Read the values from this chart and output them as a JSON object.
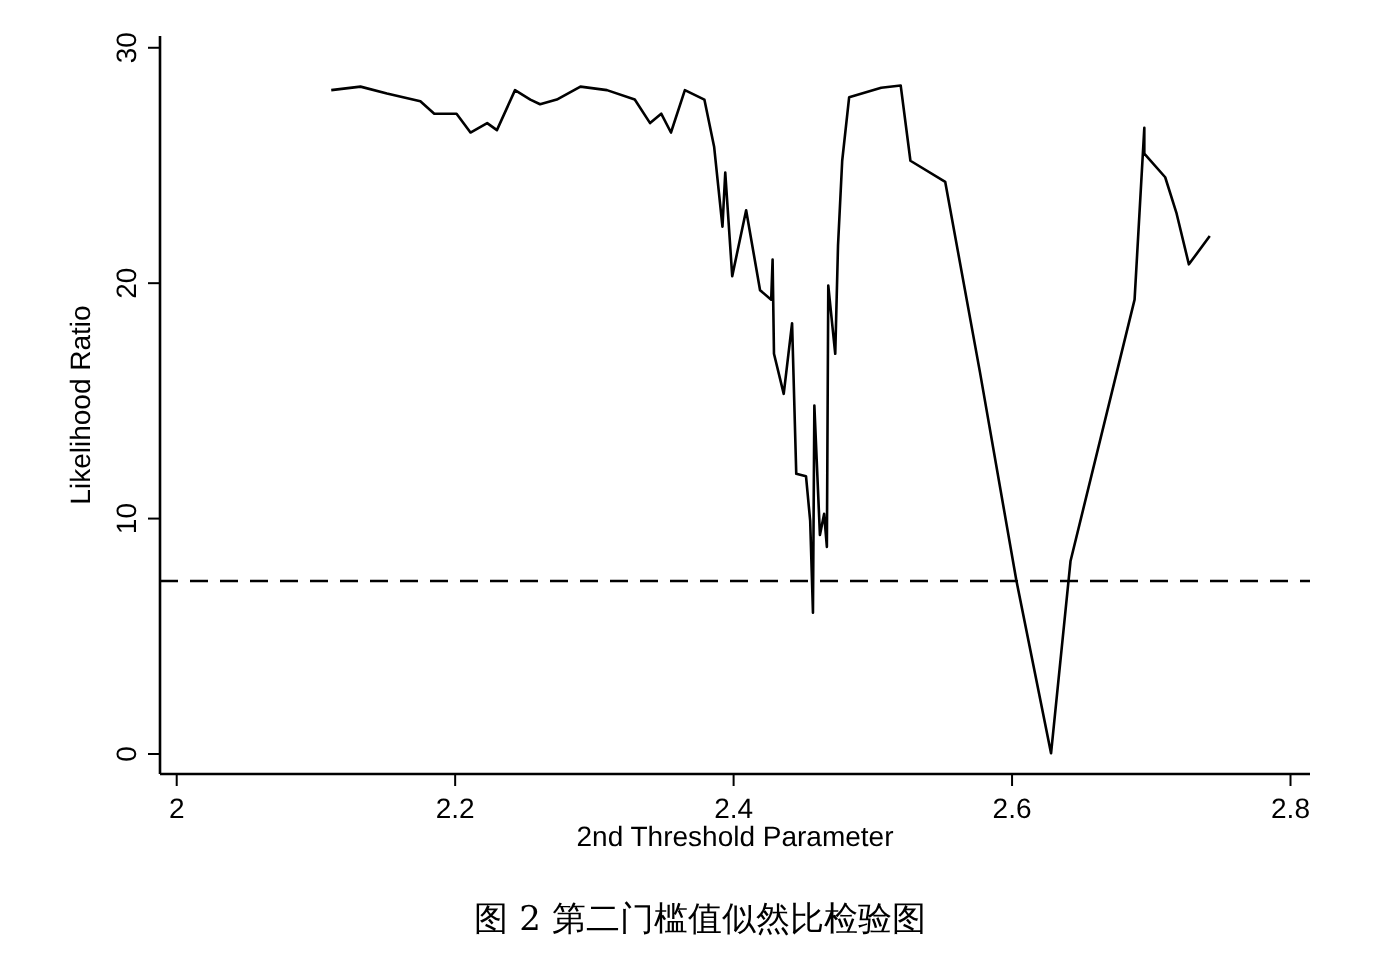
{
  "chart_data": {
    "type": "line",
    "xlabel": "2nd Threshold Parameter",
    "ylabel": "Likelihood Ratio",
    "annotations": [
      "图 2 第二门槛值似然比检验图"
    ],
    "xlim": [
      1.988,
      2.814
    ],
    "ylim": [
      -0.85,
      30.5
    ],
    "xticks": [
      2,
      2.2,
      2.4,
      2.6,
      2.8
    ],
    "yticks": [
      0,
      10,
      20,
      30
    ],
    "ref_lines": [
      {
        "axis": "y",
        "value": 7.35,
        "line_style": "dashed",
        "color": "#000000"
      }
    ],
    "series": [
      {
        "color": "#000000",
        "line_style": "solid",
        "x": [
          2.111,
          2.132,
          2.151,
          2.175,
          2.185,
          2.201,
          2.211,
          2.223,
          2.23,
          2.243,
          2.254,
          2.261,
          2.273,
          2.29,
          2.309,
          2.329,
          2.34,
          2.348,
          2.355,
          2.365,
          2.379,
          2.386,
          2.392,
          2.394,
          2.399,
          2.409,
          2.419,
          2.427,
          2.428,
          2.429,
          2.436,
          2.442,
          2.445,
          2.452,
          2.455,
          2.457,
          2.458,
          2.462,
          2.465,
          2.467,
          2.468,
          2.473,
          2.475,
          2.478,
          2.483,
          2.506,
          2.52,
          2.527,
          2.552,
          2.577,
          2.603,
          2.628,
          2.642,
          2.688,
          2.695,
          2.695,
          2.71,
          2.718,
          2.727,
          2.742
        ],
        "values": [
          28.2,
          28.35,
          28.06,
          27.73,
          27.2,
          27.2,
          26.4,
          26.8,
          26.5,
          28.2,
          27.8,
          27.6,
          27.8,
          28.35,
          28.2,
          27.8,
          26.8,
          27.2,
          26.4,
          28.2,
          27.8,
          25.8,
          22.4,
          24.7,
          20.3,
          23.1,
          19.7,
          19.3,
          21.0,
          17.0,
          15.3,
          18.3,
          11.9,
          11.8,
          9.9,
          6.0,
          14.8,
          9.3,
          10.2,
          8.8,
          19.9,
          17.0,
          21.6,
          25.2,
          27.9,
          28.3,
          28.4,
          25.2,
          24.3,
          16.2,
          7.4,
          0.03,
          8.2,
          19.3,
          26.6,
          25.5,
          24.5,
          23.0,
          20.8,
          22.0
        ]
      }
    ]
  }
}
